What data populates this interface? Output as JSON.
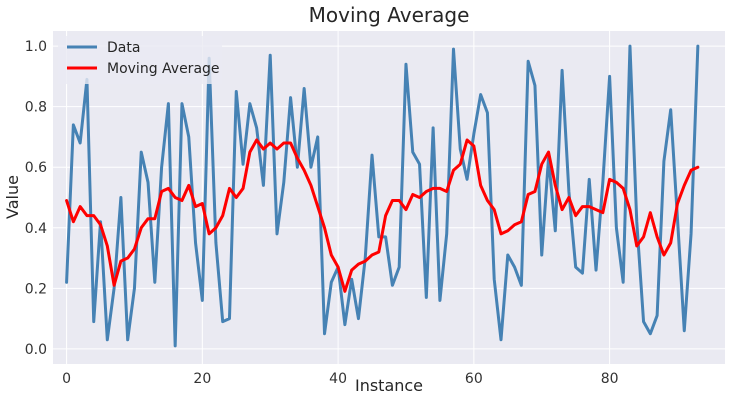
{
  "chart_data": {
    "type": "line",
    "title": "Moving Average",
    "xlabel": "Instance",
    "ylabel": "Value",
    "xlim": [
      -2,
      97
    ],
    "ylim": [
      -0.05,
      1.05
    ],
    "x_ticks": [
      0,
      20,
      40,
      60,
      80
    ],
    "y_ticks": [
      0.0,
      0.2,
      0.4,
      0.6,
      0.8,
      1.0
    ],
    "y_tick_labels": [
      "0.0",
      "0.2",
      "0.4",
      "0.6",
      "0.8",
      "1.0"
    ],
    "grid": true,
    "legend_position": "top-left",
    "series": [
      {
        "name": "Data",
        "color": "#4682b4",
        "values": [
          0.22,
          0.74,
          0.68,
          0.89,
          0.09,
          0.42,
          0.03,
          0.2,
          0.5,
          0.03,
          0.2,
          0.65,
          0.55,
          0.22,
          0.6,
          0.81,
          0.01,
          0.81,
          0.7,
          0.35,
          0.16,
          0.96,
          0.35,
          0.09,
          0.1,
          0.85,
          0.61,
          0.81,
          0.73,
          0.54,
          0.97,
          0.38,
          0.55,
          0.83,
          0.6,
          0.86,
          0.6,
          0.7,
          0.05,
          0.22,
          0.27,
          0.08,
          0.23,
          0.1,
          0.3,
          0.64,
          0.37,
          0.37,
          0.21,
          0.27,
          0.94,
          0.65,
          0.61,
          0.17,
          0.73,
          0.16,
          0.38,
          0.99,
          0.66,
          0.56,
          0.71,
          0.84,
          0.78,
          0.23,
          0.03,
          0.31,
          0.27,
          0.21,
          0.95,
          0.87,
          0.31,
          0.63,
          0.39,
          0.92,
          0.52,
          0.27,
          0.25,
          0.56,
          0.26,
          0.55,
          0.9,
          0.4,
          0.22,
          1.0,
          0.42,
          0.09,
          0.05,
          0.11,
          0.62,
          0.79,
          0.43,
          0.06,
          0.38,
          1.0
        ]
      },
      {
        "name": "Moving Average",
        "color": "#ff0000",
        "values": [
          0.49,
          0.42,
          0.47,
          0.44,
          0.44,
          0.41,
          0.34,
          0.21,
          0.29,
          0.3,
          0.33,
          0.4,
          0.43,
          0.43,
          0.52,
          0.53,
          0.5,
          0.49,
          0.54,
          0.47,
          0.48,
          0.38,
          0.4,
          0.44,
          0.53,
          0.5,
          0.53,
          0.65,
          0.69,
          0.66,
          0.68,
          0.66,
          0.68,
          0.68,
          0.63,
          0.59,
          0.54,
          0.47,
          0.4,
          0.31,
          0.27,
          0.19,
          0.26,
          0.28,
          0.29,
          0.31,
          0.32,
          0.44,
          0.49,
          0.49,
          0.46,
          0.51,
          0.5,
          0.52,
          0.53,
          0.53,
          0.52,
          0.59,
          0.61,
          0.69,
          0.67,
          0.54,
          0.49,
          0.46,
          0.38,
          0.39,
          0.41,
          0.42,
          0.51,
          0.52,
          0.61,
          0.65,
          0.54,
          0.46,
          0.5,
          0.44,
          0.47,
          0.47,
          0.46,
          0.45,
          0.56,
          0.55,
          0.53,
          0.46,
          0.34,
          0.37,
          0.45,
          0.37,
          0.31,
          0.35,
          0.48,
          0.54,
          0.59,
          0.6
        ]
      }
    ]
  }
}
